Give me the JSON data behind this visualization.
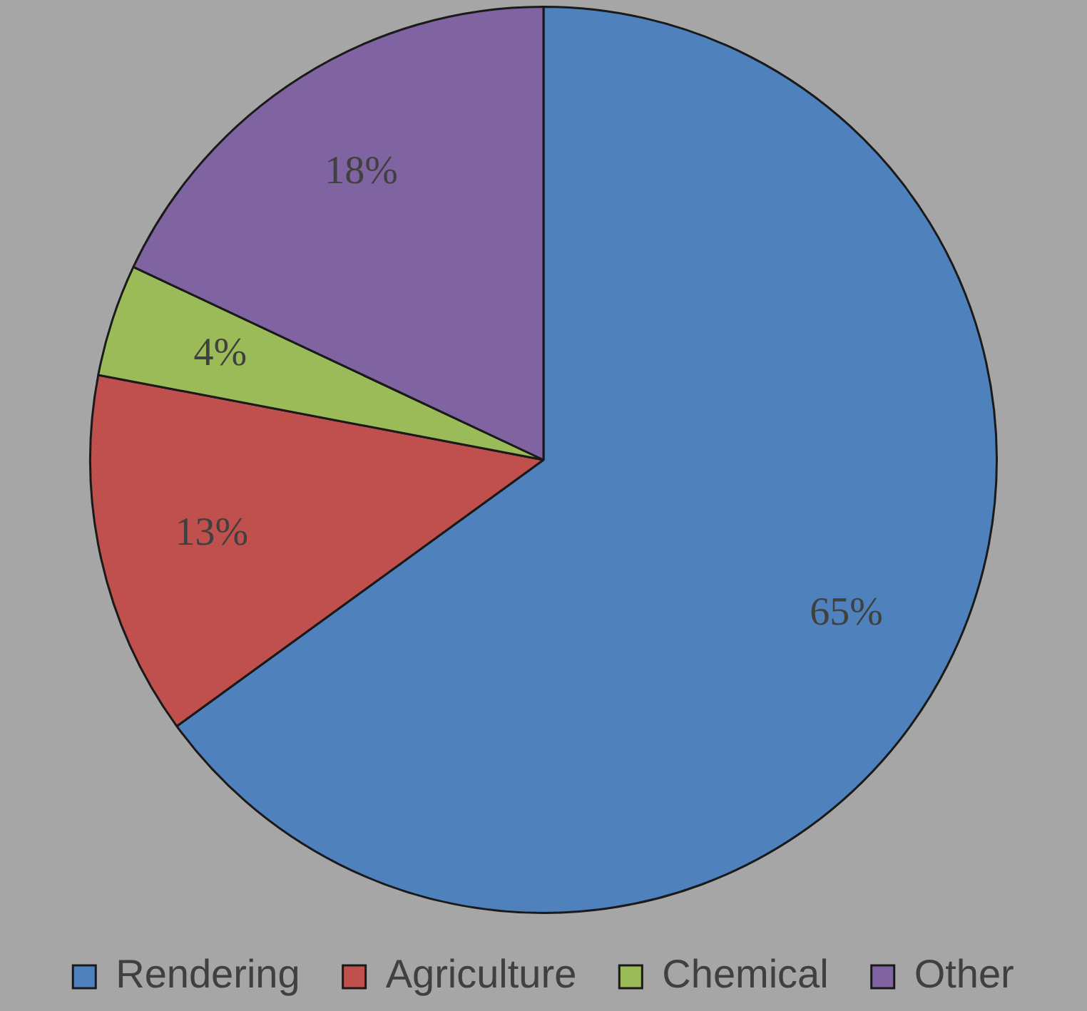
{
  "chart_data": {
    "type": "pie",
    "categories": [
      "Rendering",
      "Agriculture",
      "Chemical",
      "Other"
    ],
    "values": [
      65,
      13,
      4,
      18
    ],
    "colors": [
      "#4f81bd",
      "#c0504d",
      "#9bbb59",
      "#8064a2"
    ],
    "value_labels": [
      "65%",
      "13%",
      "4%",
      "18%"
    ],
    "legend": "bottom"
  }
}
